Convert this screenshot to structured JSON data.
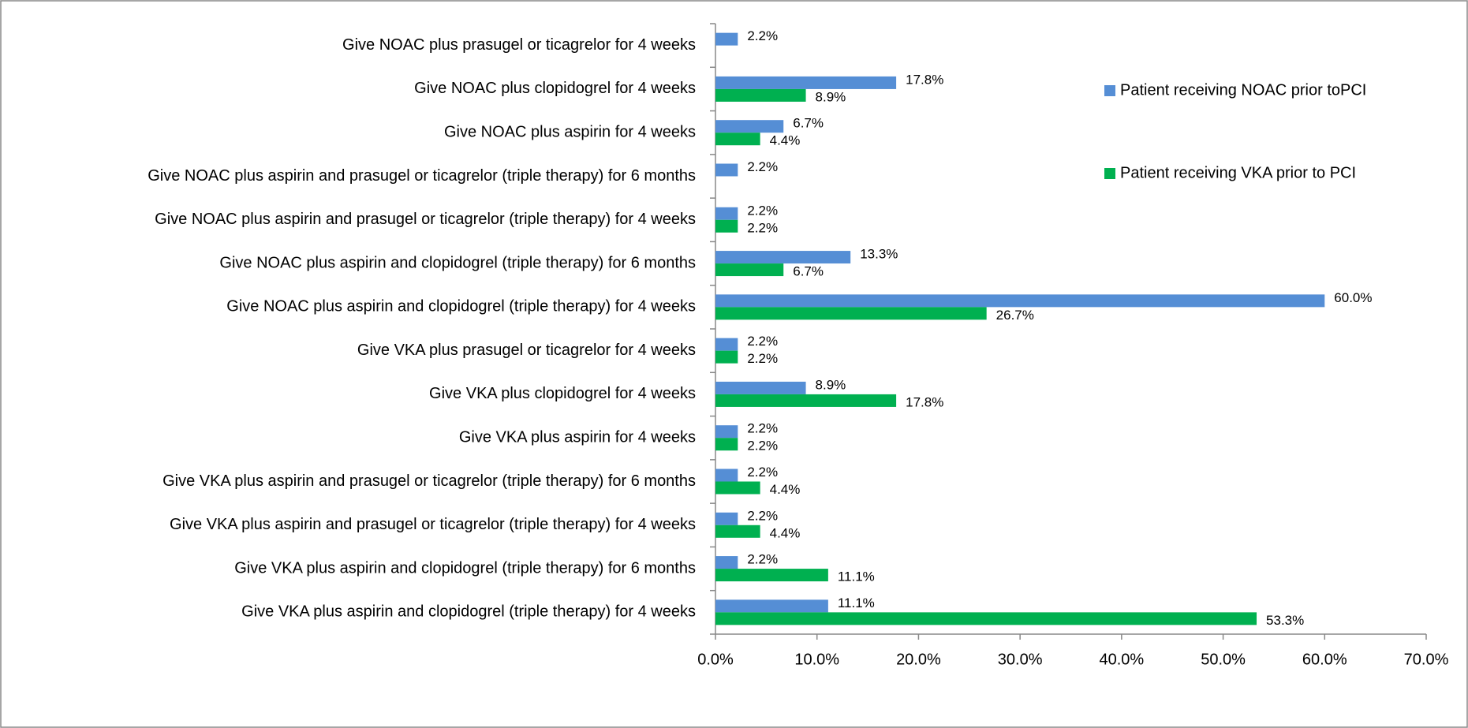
{
  "chart_data": {
    "type": "bar",
    "orientation": "horizontal",
    "categories": [
      "Give NOAC plus prasugel or ticagrelor for 4 weeks",
      "Give NOAC plus clopidogrel for 4 weeks",
      "Give NOAC plus aspirin for 4 weeks",
      "Give NOAC plus aspirin and prasugel or ticagrelor (triple therapy) for 6 months",
      "Give NOAC plus aspirin and prasugel or ticagrelor (triple therapy) for 4 weeks",
      "Give NOAC plus aspirin and clopidogrel (triple therapy) for 6 months",
      "Give NOAC plus aspirin and clopidogrel (triple therapy) for 4 weeks",
      "Give VKA plus prasugel or ticagrelor for 4 weeks",
      "Give VKA plus clopidogrel for 4 weeks",
      "Give VKA plus aspirin for 4 weeks",
      "Give VKA plus aspirin and prasugel or ticagrelor (triple therapy) for 6 months",
      "Give VKA plus aspirin and prasugel or ticagrelor (triple therapy) for 4 weeks",
      "Give VKA plus aspirin and clopidogrel (triple therapy) for 6 months",
      "Give VKA plus aspirin and clopidogrel (triple therapy) for 4 weeks"
    ],
    "series": [
      {
        "name": "Patient receiving NOAC prior toPCI",
        "color": "#558ed5",
        "values": [
          2.2,
          17.8,
          6.7,
          2.2,
          2.2,
          13.3,
          60.0,
          2.2,
          8.9,
          2.2,
          2.2,
          2.2,
          2.2,
          11.1
        ],
        "value_labels": [
          "2.2%",
          "17.8%",
          "6.7%",
          "2.2%",
          "2.2%",
          "13.3%",
          "60.0%",
          "2.2%",
          "8.9%",
          "2.2%",
          "2.2%",
          "2.2%",
          "2.2%",
          "11.1%"
        ]
      },
      {
        "name": "Patient receiving VKA prior to PCI",
        "color": "#00b050",
        "values": [
          null,
          8.9,
          4.4,
          null,
          2.2,
          6.7,
          26.7,
          2.2,
          17.8,
          2.2,
          4.4,
          4.4,
          11.1,
          53.3
        ],
        "value_labels": [
          null,
          "8.9%",
          "4.4%",
          null,
          "2.2%",
          "6.7%",
          "26.7%",
          "2.2%",
          "17.8%",
          "2.2%",
          "4.4%",
          "4.4%",
          "11.1%",
          "53.3%"
        ]
      }
    ],
    "xlim": [
      0,
      70
    ],
    "xticks": [
      {
        "value": 0,
        "label": "0.0%"
      },
      {
        "value": 10,
        "label": "10.0%"
      },
      {
        "value": 20,
        "label": "20.0%"
      },
      {
        "value": 30,
        "label": "30.0%"
      },
      {
        "value": 40,
        "label": "40.0%"
      },
      {
        "value": 50,
        "label": "50.0%"
      },
      {
        "value": 60,
        "label": "60.0%"
      },
      {
        "value": 70,
        "label": "70.0%"
      }
    ],
    "grid": false,
    "legend": "upper right"
  }
}
